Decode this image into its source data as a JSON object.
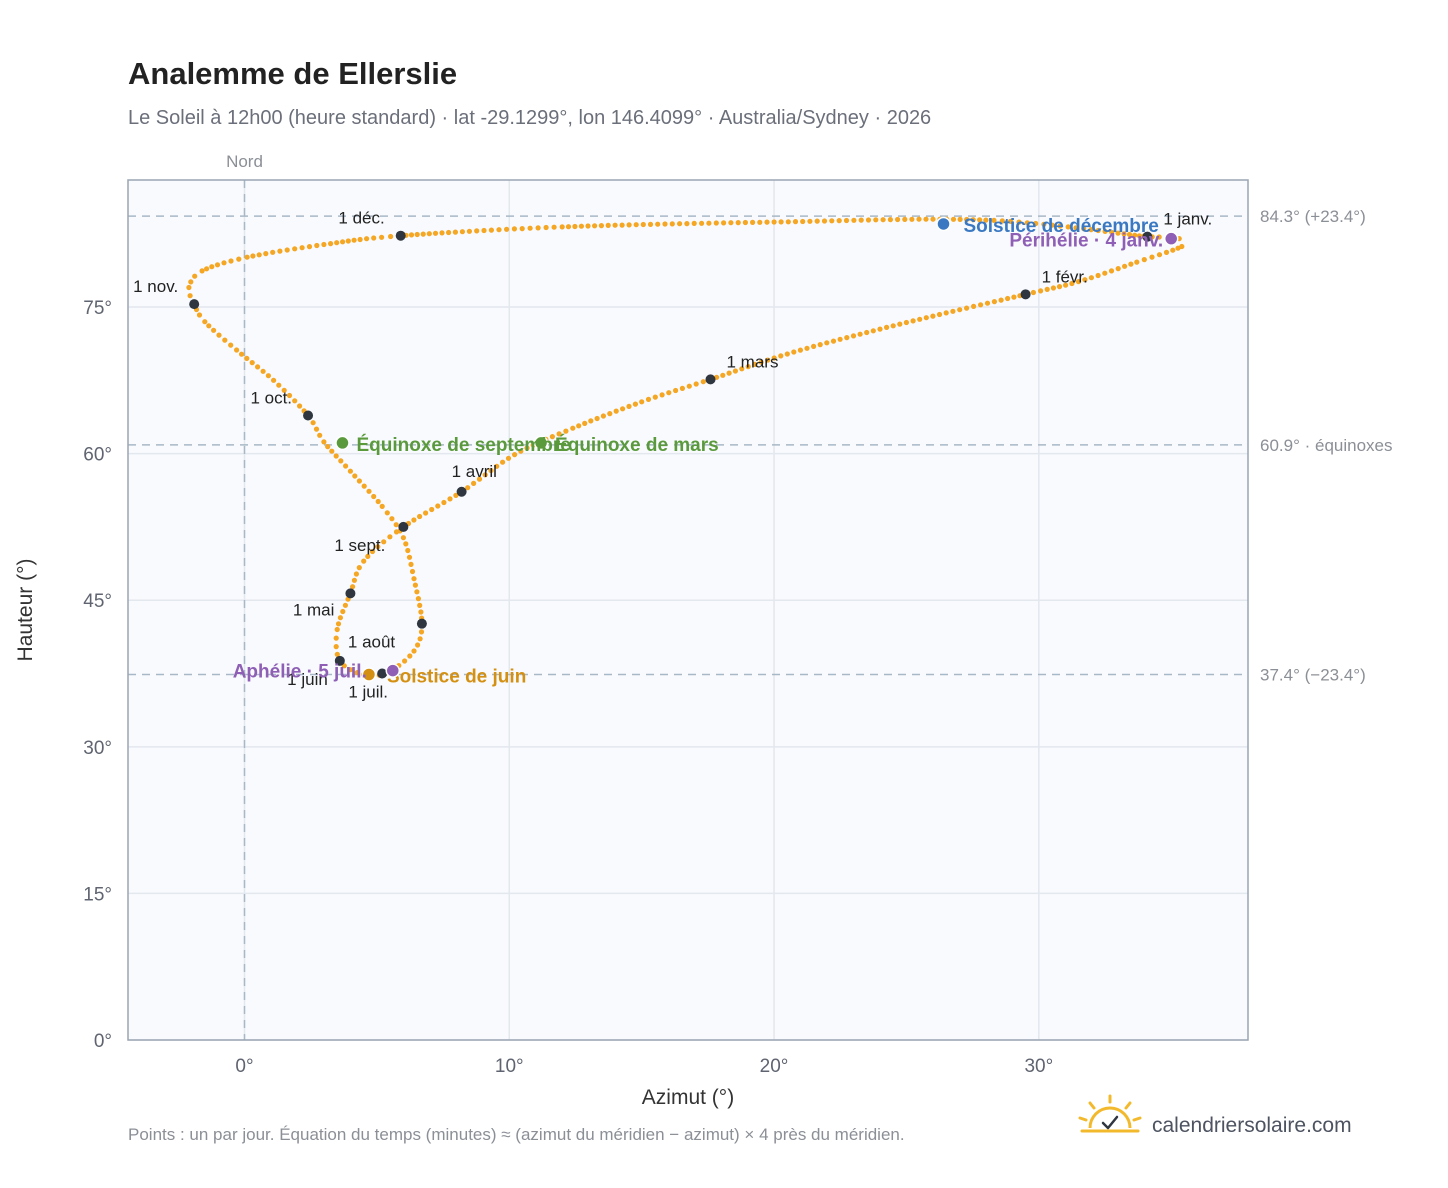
{
  "title": "Analemme de Ellerslie",
  "subtitle": "Le Soleil à 12h00 (heure standard) · lat -29.1299°, lon 146.4099° · Australia/Sydney · 2026",
  "footnote": "Points : un par jour. Équation du temps (minutes) ≈ (azimut du méridien − azimut) × 4 près du méridien.",
  "brand": "calendriersolaire.com",
  "colors": {
    "curve": "#f5a623",
    "month_dot": "#2f3640",
    "solstice_dec": "#3a78c2",
    "perihelion": "#8e5fb5",
    "equinox": "#5a9a3c",
    "solstice_jun": "#d49012",
    "aphelion": "#8e5fb5",
    "plot_bg": "#f8fafd",
    "grid": "#e3e7ee",
    "refline": "#a9b8c6"
  },
  "chart_data": {
    "type": "scatter",
    "title": "Analemme de Ellerslie",
    "xlabel": "Azimut (°)",
    "ylabel": "Hauteur (°)",
    "xlim": [
      -4.4,
      37.9
    ],
    "ylim": [
      0,
      88
    ],
    "x_ticks": [
      0,
      10,
      20,
      30
    ],
    "x_tick_labels": [
      "0°",
      "10°",
      "20°",
      "30°"
    ],
    "y_ticks": [
      0,
      15,
      30,
      45,
      60,
      75
    ],
    "y_tick_labels": [
      "0°",
      "15°",
      "30°",
      "45°",
      "60°",
      "75°"
    ],
    "meridian_label": "Nord",
    "meridian_azimuth": 0,
    "reference_lines": [
      {
        "altitude": 84.3,
        "label": "84.3° (+23.4°)"
      },
      {
        "altitude": 60.9,
        "label": "60.9° · équinoxes"
      },
      {
        "altitude": 37.4,
        "label": "37.4° (−23.4°)"
      }
    ],
    "series": [
      {
        "points": [
          [
            34.1,
            82.2
          ],
          [
            35.3,
            82.0
          ],
          [
            35.4,
            81.2
          ],
          [
            33.7,
            79.6
          ],
          [
            31.5,
            77.6
          ],
          [
            29.5,
            76.3
          ],
          [
            26.5,
            74.4
          ],
          [
            23.5,
            72.4
          ],
          [
            20.5,
            70.2
          ],
          [
            17.6,
            67.6
          ],
          [
            15.0,
            65.3
          ],
          [
            12.4,
            62.6
          ],
          [
            10.2,
            59.9
          ],
          [
            8.2,
            56.1
          ],
          [
            6.0,
            52.5
          ],
          [
            4.5,
            49.0
          ],
          [
            4.0,
            45.7
          ],
          [
            3.5,
            42.0
          ],
          [
            3.6,
            38.8
          ],
          [
            4.5,
            37.4
          ],
          [
            5.4,
            37.6
          ],
          [
            6.4,
            39.8
          ],
          [
            6.7,
            42.6
          ],
          [
            6.4,
            47.2
          ],
          [
            6.0,
            51.4
          ],
          [
            5.2,
            54.6
          ],
          [
            4.0,
            58.2
          ],
          [
            3.0,
            61.2
          ],
          [
            2.4,
            63.9
          ],
          [
            1.1,
            67.5
          ],
          [
            -0.3,
            70.6
          ],
          [
            -1.5,
            73.5
          ],
          [
            -1.9,
            75.3
          ],
          [
            -2.1,
            77.0
          ],
          [
            -1.6,
            78.7
          ],
          [
            0.1,
            80.1
          ],
          [
            3.0,
            81.4
          ],
          [
            5.9,
            82.3
          ],
          [
            12.0,
            83.2
          ],
          [
            20.0,
            83.7
          ],
          [
            28.0,
            83.9
          ],
          [
            34.1,
            82.2
          ]
        ]
      }
    ],
    "month_markers": [
      {
        "label": "1 janv.",
        "azimuth": 34.1,
        "altitude": 82.2
      },
      {
        "label": "1 févr.",
        "azimuth": 29.5,
        "altitude": 76.3
      },
      {
        "label": "1 mars",
        "azimuth": 17.6,
        "altitude": 67.6
      },
      {
        "label": "1 avril",
        "azimuth": 8.2,
        "altitude": 56.1
      },
      {
        "label": "1 mai",
        "azimuth": 4.0,
        "altitude": 45.7
      },
      {
        "label": "1 juin",
        "azimuth": 3.6,
        "altitude": 38.8
      },
      {
        "label": "1 juil.",
        "azimuth": 5.2,
        "altitude": 37.5
      },
      {
        "label": "1 août",
        "azimuth": 6.7,
        "altitude": 42.6
      },
      {
        "label": "1 sept.",
        "azimuth": 6.0,
        "altitude": 52.5
      },
      {
        "label": "1 oct.",
        "azimuth": 2.4,
        "altitude": 63.9
      },
      {
        "label": "1 nov.",
        "azimuth": -1.9,
        "altitude": 75.3
      },
      {
        "label": "1 déc.",
        "azimuth": 5.9,
        "altitude": 82.3
      }
    ],
    "events": [
      {
        "label": "Solstice de décembre",
        "azimuth": 26.4,
        "altitude": 83.5,
        "color": "#3a78c2"
      },
      {
        "label": "Périhélie · 4 janv.",
        "azimuth": 35.0,
        "altitude": 82.0,
        "color": "#8e5fb5"
      },
      {
        "label": "Équinoxe de mars",
        "azimuth": 11.2,
        "altitude": 61.1,
        "color": "#5a9a3c"
      },
      {
        "label": "Équinoxe de septembre",
        "azimuth": 3.7,
        "altitude": 61.1,
        "color": "#5a9a3c"
      },
      {
        "label": "Solstice de juin",
        "azimuth": 4.7,
        "altitude": 37.4,
        "color": "#d49012"
      },
      {
        "label": "Aphélie · 5 juil.",
        "azimuth": 5.6,
        "altitude": 37.8,
        "color": "#8e5fb5"
      }
    ]
  }
}
